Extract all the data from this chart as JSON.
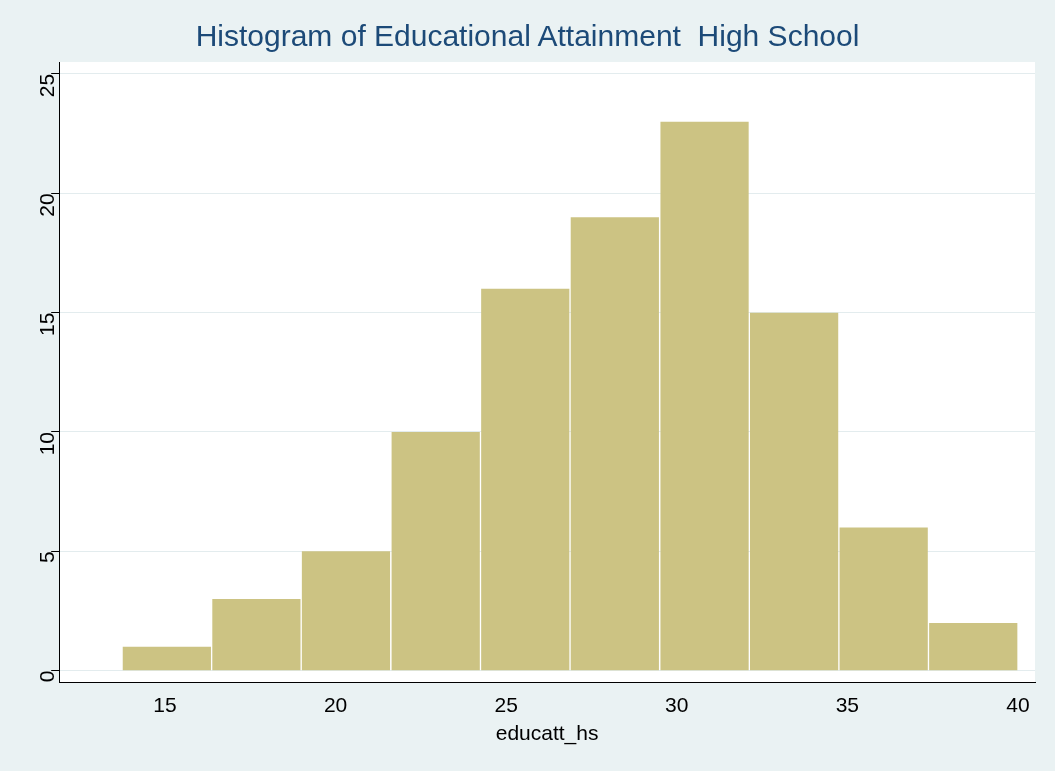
{
  "chart_data": {
    "type": "histogram",
    "title": "Histogram of Educational Attainment  High School",
    "xlabel": "educatt_hs",
    "bins": [
      13.74,
      16.37,
      18.99,
      21.62,
      24.25,
      26.87,
      29.5,
      32.13,
      34.75,
      37.38,
      40.0
    ],
    "values": [
      1,
      3,
      5,
      10,
      16,
      19,
      23,
      15,
      6,
      2
    ],
    "color": "#ccc383",
    "xlim": [
      11.9,
      40.5
    ],
    "xticks": [
      15,
      20,
      25,
      30,
      35,
      40
    ],
    "ylim": [
      -0.5,
      25.5
    ],
    "yticks": [
      0,
      5,
      10,
      15,
      20,
      25
    ],
    "grid": "y",
    "legend": false
  }
}
